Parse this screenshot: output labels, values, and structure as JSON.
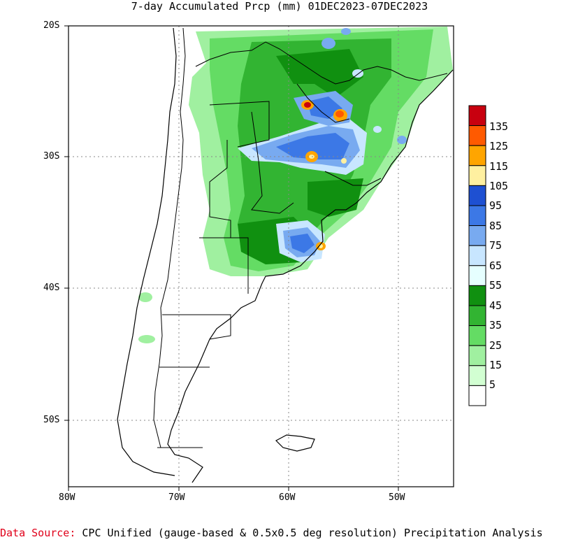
{
  "title": "7-day Accumulated Prcp (mm) 01DEC2023-07DEC2023",
  "axes": {
    "lat_ticks": [
      "20S",
      "30S",
      "40S",
      "50S"
    ],
    "lon_ticks": [
      "80W",
      "70W",
      "60W",
      "50W"
    ]
  },
  "colorbar": {
    "labels": [
      "135",
      "125",
      "115",
      "105",
      "95",
      "85",
      "75",
      "65",
      "55",
      "45",
      "35",
      "25",
      "15",
      "5"
    ],
    "colors": [
      "#c8000f",
      "#ff5a00",
      "#ffa500",
      "#fff0a0",
      "#1e50d2",
      "#3c78e6",
      "#78aaf0",
      "#c8e6ff",
      "#e6ffff",
      "#109010",
      "#32b432",
      "#64dc64",
      "#a0f0a0",
      "#d2ffd2",
      "#ffffff"
    ]
  },
  "source": {
    "label": "Data Source:",
    "text": "CPC Unified (gauge-based & 0.5x0.5 deg resolution) Precipitation Analysis"
  }
}
